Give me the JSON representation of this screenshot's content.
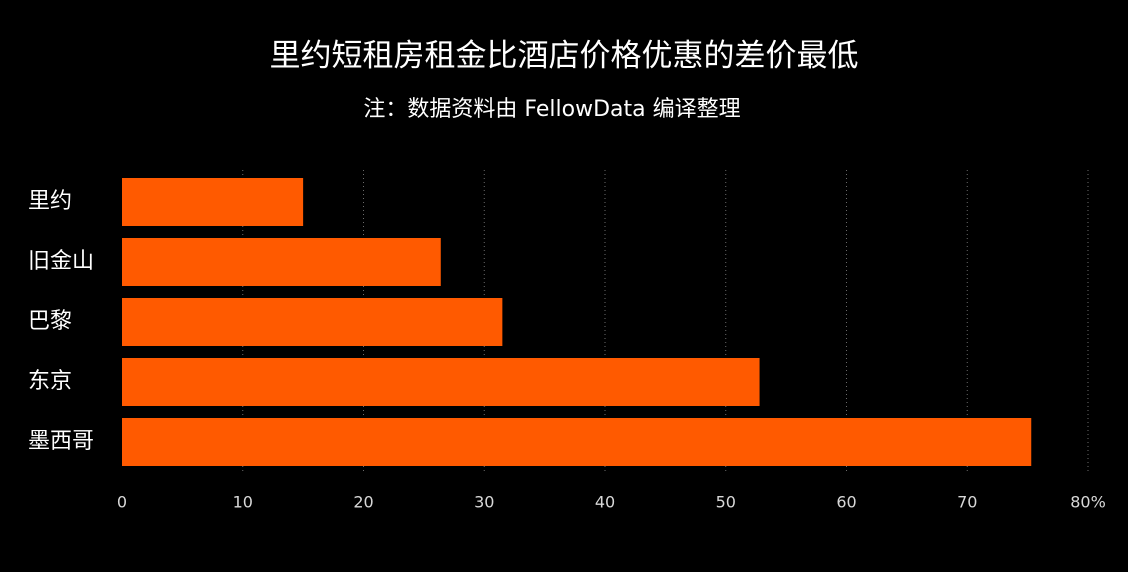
{
  "header": {
    "title": "里约短租房租金比酒店价格优惠的差价最低",
    "subtitle": "注：数据资料由 FellowData 编译整理"
  },
  "colors": {
    "background": "#000000",
    "bar": "#ff5a00",
    "text": "#ffffff",
    "tick_text": "#d8d8d8",
    "grid": "#6b6b6b"
  },
  "chart_data": {
    "type": "bar",
    "orientation": "horizontal",
    "categories": [
      "里约",
      "旧金山",
      "巴黎",
      "东京",
      "墨西哥"
    ],
    "values": [
      15,
      26.4,
      31.5,
      52.8,
      75.3
    ],
    "xlim": [
      0,
      80
    ],
    "xticks": [
      0,
      10,
      20,
      30,
      40,
      50,
      60,
      70,
      80
    ],
    "xtick_labels": [
      "0",
      "10",
      "20",
      "30",
      "40",
      "50",
      "60",
      "70",
      "80%"
    ],
    "grid": "vertical dotted",
    "legend": "none"
  }
}
